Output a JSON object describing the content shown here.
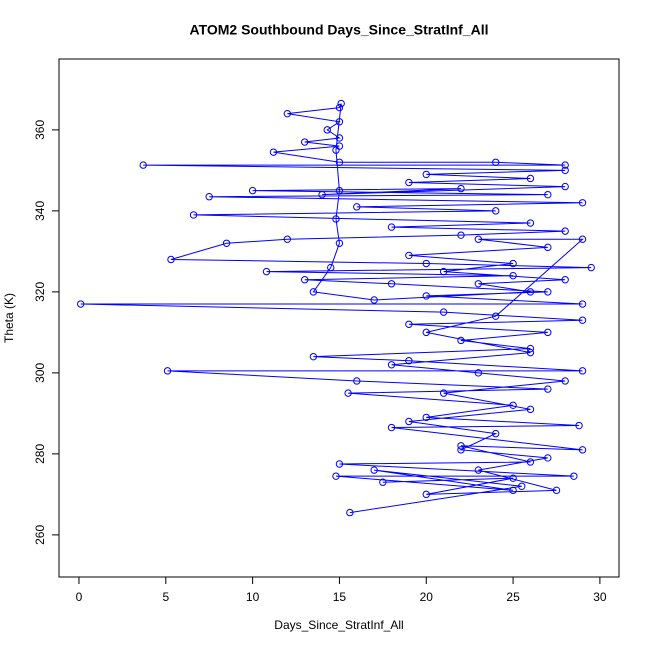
{
  "chart_data": {
    "type": "scatter",
    "title": "ATOM2 Southbound Days_Since_StratInf_All",
    "x_label": "Days_Since_StratInf_All",
    "y_label": "Theta (K)",
    "xlim": [
      -1.15,
      31.1
    ],
    "ylim": [
      249.6,
      377.5
    ],
    "xticks": [
      0,
      5,
      10,
      15,
      20,
      25,
      30
    ],
    "yticks": [
      260,
      280,
      300,
      320,
      340,
      360
    ],
    "series": [
      {
        "name": "Theta",
        "color": "#0000ff",
        "x": [
          15.6,
          25.5,
          17,
          25,
          14.8,
          28.5,
          15,
          26,
          22,
          29,
          18,
          28.8,
          20,
          25,
          15.5,
          27,
          16,
          5.1,
          29,
          19,
          13.5,
          26,
          22,
          27,
          19,
          29,
          21,
          0.1,
          29,
          20,
          27,
          18,
          13,
          25,
          10.8,
          29.5,
          20,
          5.3,
          8.5,
          12,
          22,
          28,
          18,
          26,
          6.6,
          24,
          16,
          29,
          7.5,
          27,
          10,
          22,
          14,
          28,
          19,
          26,
          20,
          28,
          3.7,
          28,
          24,
          15,
          11.2,
          15,
          13,
          15,
          14.3,
          15,
          12,
          15,
          15.1,
          14.8,
          15,
          14.8,
          15,
          14.5,
          13.5,
          17,
          26,
          23,
          28,
          21,
          25,
          19,
          27,
          23,
          29,
          24,
          20,
          26,
          18,
          23,
          28,
          21,
          26,
          19,
          24,
          22,
          27,
          23,
          27.5,
          20,
          25,
          17.5
        ],
        "values": [
          265.5,
          272,
          276,
          271,
          274.5,
          274.5,
          277.5,
          278,
          282,
          281,
          286.5,
          287,
          289,
          292,
          295,
          296,
          298,
          300.5,
          300.5,
          303,
          304,
          306,
          308,
          310,
          312,
          313,
          315,
          317,
          317,
          319,
          320,
          322,
          323,
          324,
          325,
          326,
          327,
          328,
          332,
          333,
          334,
          335,
          336,
          337,
          339,
          340,
          341,
          342,
          343.5,
          344,
          345,
          345.5,
          344,
          346,
          347,
          348,
          349,
          350,
          351.3,
          351.3,
          352,
          352,
          354.5,
          356,
          357,
          358,
          360,
          362,
          364,
          365.5,
          366.5,
          355,
          345,
          338,
          332,
          326,
          320,
          318,
          320,
          322,
          323,
          325,
          327,
          329,
          331,
          333,
          333,
          314,
          310,
          305,
          302,
          300,
          298,
          295,
          291,
          288,
          285,
          281,
          279,
          276,
          271,
          270,
          274,
          273
        ]
      }
    ]
  }
}
